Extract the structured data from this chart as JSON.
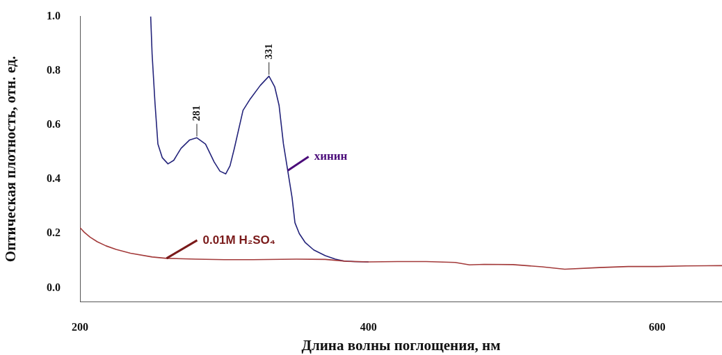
{
  "chart_data": {
    "type": "line",
    "xlabel": "Длина волны поглощения, нм",
    "ylabel": "Оптическая плотность, отн. ед.",
    "xlim": [
      200,
      645
    ],
    "xticks": [
      200,
      400,
      600
    ],
    "ylim": [
      -0.05,
      1.0
    ],
    "yticks": [
      {
        "value": 0,
        "label": "0.0"
      },
      0.2,
      0.4,
      0.6,
      0.8,
      {
        "value": 1,
        "label": "1.0"
      }
    ],
    "grid": false,
    "legend": false,
    "marker": "none",
    "line_style": "solid",
    "series": [
      {
        "name": "хинин",
        "color": "#23237a",
        "x": [
          249,
          250,
          252,
          254,
          257,
          261,
          265,
          270,
          276,
          281,
          287,
          293,
          297,
          301,
          304,
          307,
          313,
          318,
          325,
          331,
          335,
          338,
          341,
          344,
          347,
          349,
          352,
          356,
          362,
          370,
          377,
          383,
          390,
          400
        ],
        "values": [
          1.0,
          0.86,
          0.68,
          0.53,
          0.48,
          0.457,
          0.47,
          0.514,
          0.545,
          0.553,
          0.53,
          0.464,
          0.43,
          0.42,
          0.45,
          0.514,
          0.654,
          0.696,
          0.746,
          0.78,
          0.74,
          0.672,
          0.531,
          0.432,
          0.333,
          0.24,
          0.2,
          0.168,
          0.14,
          0.119,
          0.106,
          0.099,
          0.097,
          0.096
        ]
      },
      {
        "name": "0.01M H₂SO₄",
        "color": "#a33a3a",
        "x": [
          200,
          203,
          207,
          212,
          218,
          225,
          235,
          250,
          260,
          280,
          300,
          320,
          350,
          370,
          385,
          400,
          420,
          440,
          460,
          470,
          480,
          500,
          520,
          536,
          560,
          580,
          600,
          620,
          645
        ],
        "values": [
          0.222,
          0.205,
          0.187,
          0.17,
          0.155,
          0.142,
          0.128,
          0.114,
          0.109,
          0.106,
          0.104,
          0.104,
          0.106,
          0.105,
          0.098,
          0.096,
          0.097,
          0.097,
          0.094,
          0.085,
          0.087,
          0.086,
          0.078,
          0.069,
          0.075,
          0.079,
          0.079,
          0.081,
          0.082
        ]
      }
    ],
    "annotations": [
      {
        "text": "281",
        "x": 281,
        "y": 0.553
      },
      {
        "text": "331",
        "x": 331,
        "y": 0.78
      }
    ]
  }
}
